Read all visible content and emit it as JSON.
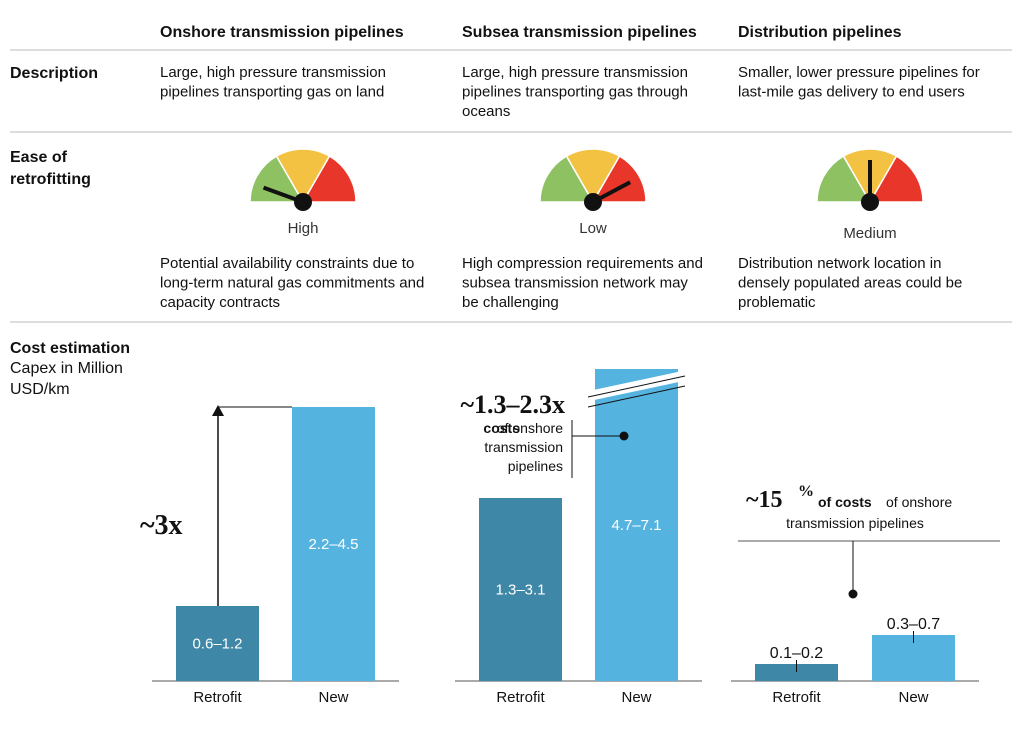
{
  "columns": [
    "Onshore transmission pipelines",
    "Subsea transmission pipelines",
    "Distribution pipelines"
  ],
  "description": {
    "label": "Description",
    "cells": [
      [
        "Large, high pressure transmission",
        "pipelines transporting gas on land"
      ],
      [
        "Large, high pressure transmission",
        "pipelines transporting gas through",
        "oceans"
      ],
      [
        "Smaller, lower pressure pipelines for",
        "last-mile gas delivery to end users"
      ]
    ]
  },
  "ease": {
    "label": [
      "Ease of",
      "retrofitting"
    ],
    "ratings": [
      "High",
      "Low",
      "Medium"
    ],
    "notes": [
      [
        "Potential availability constraints due to",
        "long-term natural gas commitments and",
        "capacity contracts"
      ],
      [
        "High compression requirements and",
        "subsea transmission network may",
        "be challenging"
      ],
      [
        "Distribution network location in",
        "densely populated areas could be",
        "problematic"
      ]
    ]
  },
  "cost": {
    "label": "Cost estimation",
    "unit": [
      "Capex in Million",
      "USD/km"
    ],
    "charts": [
      {
        "categories": [
          "Retrofit",
          "New"
        ],
        "value_labels": [
          "0.6–1.2",
          "2.2–4.5"
        ],
        "annotation": {
          "multiple": "~3x"
        }
      },
      {
        "categories": [
          "Retrofit",
          "New"
        ],
        "value_labels": [
          "1.3–3.1",
          "4.7–7.1"
        ],
        "annotation": {
          "multiple": "~1.3–2.3x",
          "bold": "costs",
          "lines": [
            "of onshore",
            "transmission",
            "pipelines"
          ]
        }
      },
      {
        "categories": [
          "Retrofit",
          "New"
        ],
        "value_labels": [
          "0.1–0.2",
          "0.3–0.7"
        ],
        "annotation": {
          "multiple": "~15",
          "sup": "%",
          "bold": "of costs",
          "lines": [
            "of onshore",
            "transmission pipelines"
          ]
        }
      }
    ]
  }
}
